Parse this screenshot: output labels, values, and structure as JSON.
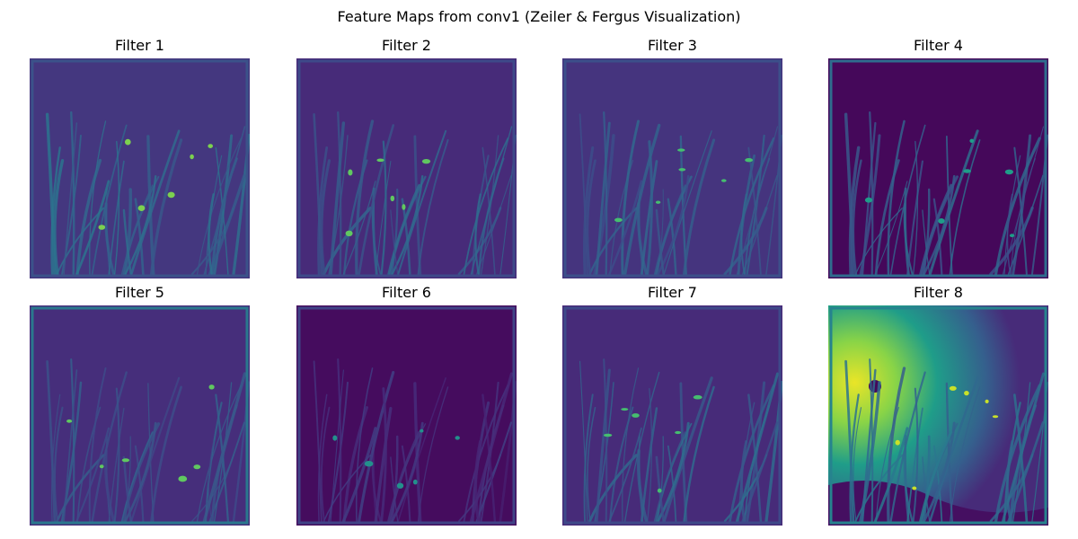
{
  "chart_data": {
    "type": "heatmap",
    "title": "Feature Maps from conv1 (Zeiler & Fergus Visualization)",
    "colormap": "viridis",
    "axes_visible": false,
    "grid": false,
    "layout": {
      "rows": 2,
      "cols": 4
    },
    "panels": [
      {
        "title": "Filter 1",
        "base_level": 0.16,
        "edge_level": 0.25,
        "stroke_level": 0.33,
        "highlight_level": 0.8
      },
      {
        "title": "Filter 2",
        "base_level": 0.12,
        "edge_level": 0.22,
        "stroke_level": 0.3,
        "highlight_level": 0.75
      },
      {
        "title": "Filter 3",
        "base_level": 0.15,
        "edge_level": 0.24,
        "stroke_level": 0.28,
        "highlight_level": 0.7
      },
      {
        "title": "Filter 4",
        "base_level": 0.02,
        "edge_level": 0.35,
        "stroke_level": 0.3,
        "highlight_level": 0.55
      },
      {
        "title": "Filter 5",
        "base_level": 0.13,
        "edge_level": 0.4,
        "stroke_level": 0.26,
        "highlight_level": 0.75
      },
      {
        "title": "Filter 6",
        "base_level": 0.03,
        "edge_level": 0.2,
        "stroke_level": 0.14,
        "highlight_level": 0.5
      },
      {
        "title": "Filter 7",
        "base_level": 0.12,
        "edge_level": 0.22,
        "stroke_level": 0.3,
        "highlight_level": 0.7
      },
      {
        "title": "Filter 8",
        "base_level": 0.05,
        "edge_level": 0.45,
        "stroke_level": 0.35,
        "highlight_level": 0.92
      }
    ]
  }
}
